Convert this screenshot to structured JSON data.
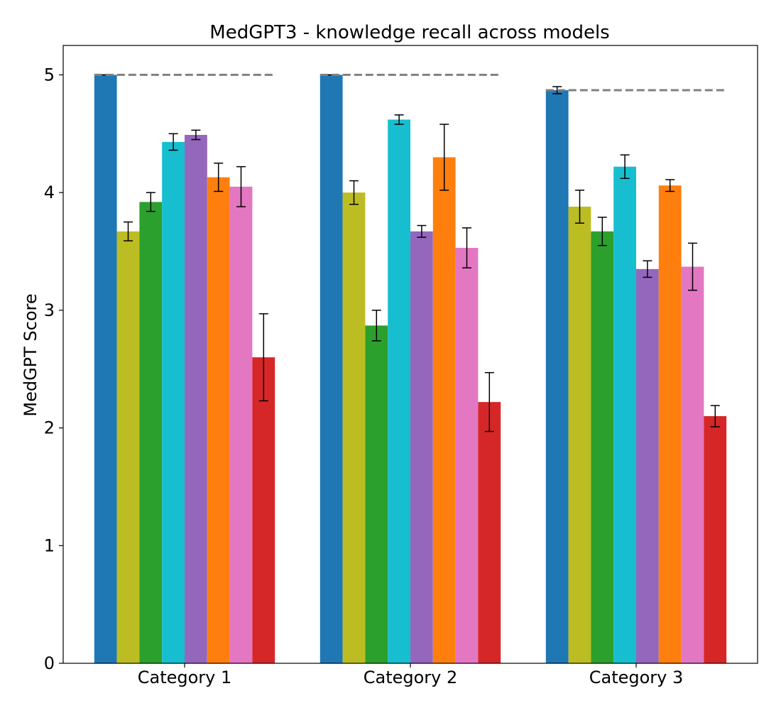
{
  "chart_data": {
    "type": "bar",
    "title": "MedGPT3 - knowledge recall across models",
    "xlabel": "",
    "ylabel": "MedGPT Score",
    "ylim": [
      0,
      5.25
    ],
    "yticks": [
      0,
      1,
      2,
      3,
      4,
      5
    ],
    "grid": false,
    "legend": null,
    "categories": [
      "Category 1",
      "Category 2",
      "Category 3"
    ],
    "series": [
      {
        "color": "#1f77b4",
        "values": [
          5.0,
          5.0,
          4.87
        ],
        "errors": [
          0.0,
          0.0,
          0.03
        ]
      },
      {
        "color": "#bcbd22",
        "values": [
          3.67,
          4.0,
          3.88
        ],
        "errors": [
          0.08,
          0.1,
          0.14
        ]
      },
      {
        "color": "#2ca02c",
        "values": [
          3.92,
          2.87,
          3.67
        ],
        "errors": [
          0.08,
          0.13,
          0.12
        ]
      },
      {
        "color": "#17becf",
        "values": [
          4.43,
          4.62,
          4.22
        ],
        "errors": [
          0.07,
          0.04,
          0.1
        ]
      },
      {
        "color": "#9467bd",
        "values": [
          4.49,
          3.67,
          3.35
        ],
        "errors": [
          0.04,
          0.05,
          0.07
        ]
      },
      {
        "color": "#ff7f0e",
        "values": [
          4.13,
          4.3,
          4.06
        ],
        "errors": [
          0.12,
          0.28,
          0.05
        ]
      },
      {
        "color": "#e377c2",
        "values": [
          4.05,
          3.53,
          3.37
        ],
        "errors": [
          0.17,
          0.17,
          0.2
        ]
      },
      {
        "color": "#d62728",
        "values": [
          2.6,
          2.22,
          2.1
        ],
        "errors": [
          0.37,
          0.25,
          0.09
        ]
      }
    ],
    "reference_lines": [
      {
        "category": "Category 1",
        "value": 5.0,
        "color": "#808080",
        "style": "dashed"
      },
      {
        "category": "Category 2",
        "value": 5.0,
        "color": "#808080",
        "style": "dashed"
      },
      {
        "category": "Category 3",
        "value": 4.87,
        "color": "#808080",
        "style": "dashed"
      }
    ]
  }
}
